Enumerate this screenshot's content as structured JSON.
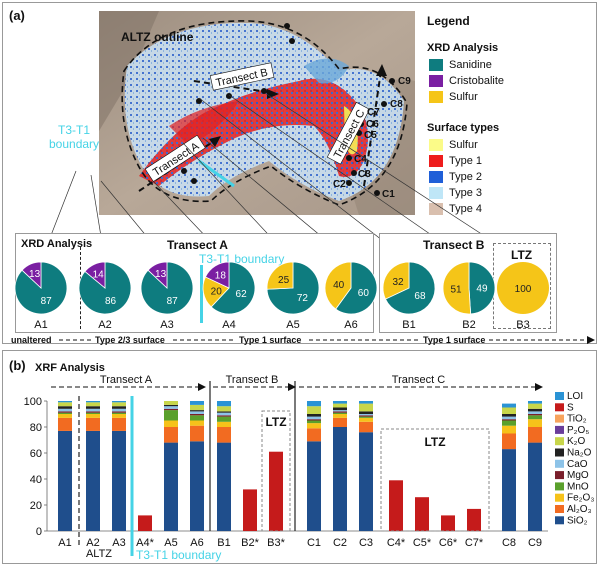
{
  "panel_a": {
    "label": "(a)",
    "legend_title": "Legend",
    "xrd_title": "XRD Analysis",
    "xrd_items": [
      {
        "name": "Sanidine",
        "color": "#0e7c7f"
      },
      {
        "name": "Cristobalite",
        "color": "#7a1fa2"
      },
      {
        "name": "Sulfur",
        "color": "#f5c518"
      }
    ],
    "surface_title": "Surface types",
    "surface_items": [
      {
        "name": "Sulfur",
        "color": "#fbfb88"
      },
      {
        "name": "Type 1",
        "color": "#ee1c1c"
      },
      {
        "name": "Type 2",
        "color": "#1f5fd8"
      },
      {
        "name": "Type 3",
        "color": "#bfe6f7"
      },
      {
        "name": "Type 4",
        "color": "#d9bfae"
      }
    ],
    "map": {
      "altz_label": "ALTZ outline",
      "boundary_label": "T3-T1\nboundary",
      "transect_labels": [
        "Transect A",
        "Transect B",
        "Transect C"
      ],
      "sample_labels": [
        "C9",
        "C8",
        "C7",
        "C6",
        "C5",
        "C4",
        "C3",
        "C2",
        "C1"
      ]
    },
    "pie_box_a": {
      "xrd_label": "XRD Analysis",
      "title": "Transect A",
      "boundary_label": "T3-T1 boundary",
      "bottom_labels": [
        "unaltered",
        "Type 2/3 surface",
        "Type 1 surface"
      ]
    },
    "pie_box_b": {
      "title": "Transect B",
      "ltz_label": "LTZ",
      "bottom_label": "Type 1 surface"
    }
  },
  "panel_b": {
    "label": "(b)",
    "title": "XRF Analysis",
    "transect_labels": [
      "Transect A",
      "Transect B",
      "Transect C"
    ],
    "ltz_label_b": "LTZ",
    "ltz_label_c": "LTZ",
    "altz_label": "ALTZ",
    "boundary_label": "T3-T1 boundary"
  },
  "chart_data": [
    {
      "type": "pie",
      "title": "XRD Analysis",
      "series_colors": {
        "Sanidine": "#0e7c7f",
        "Cristobalite": "#7a1fa2",
        "Sulfur": "#f5c518"
      },
      "pies": [
        {
          "label": "A1",
          "slices": [
            {
              "name": "Sanidine",
              "value": 87
            },
            {
              "name": "Cristobalite",
              "value": 13
            }
          ]
        },
        {
          "label": "A2",
          "slices": [
            {
              "name": "Sanidine",
              "value": 86
            },
            {
              "name": "Cristobalite",
              "value": 14
            }
          ]
        },
        {
          "label": "A3",
          "slices": [
            {
              "name": "Sanidine",
              "value": 87
            },
            {
              "name": "Cristobalite",
              "value": 13
            }
          ]
        },
        {
          "label": "A4",
          "slices": [
            {
              "name": "Sanidine",
              "value": 62
            },
            {
              "name": "Sulfur",
              "value": 20
            },
            {
              "name": "Cristobalite",
              "value": 18
            }
          ]
        },
        {
          "label": "A5",
          "slices": [
            {
              "name": "Sanidine",
              "value": 72
            },
            {
              "name": "Sulfur",
              "value": 25
            }
          ]
        },
        {
          "label": "A6",
          "slices": [
            {
              "name": "Sanidine",
              "value": 60
            },
            {
              "name": "Sulfur",
              "value": 40
            }
          ]
        },
        {
          "label": "B1",
          "slices": [
            {
              "name": "Sanidine",
              "value": 68
            },
            {
              "name": "Sulfur",
              "value": 32
            }
          ]
        },
        {
          "label": "B2",
          "slices": [
            {
              "name": "Sanidine",
              "value": 49
            },
            {
              "name": "Sulfur",
              "value": 51
            }
          ]
        },
        {
          "label": "B3",
          "slices": [
            {
              "name": "Sulfur",
              "value": 100
            }
          ]
        }
      ]
    },
    {
      "type": "bar",
      "stacked": true,
      "title": "XRF Analysis",
      "ylim": [
        0,
        100
      ],
      "yticks": [
        0,
        20,
        40,
        60,
        80,
        100
      ],
      "categories": [
        "A1",
        "A2",
        "A3",
        "A4*",
        "A5",
        "A6",
        "B1",
        "B2*",
        "B3*",
        "C1",
        "C2",
        "C3",
        "C4*",
        "C5*",
        "C6*",
        "C7*",
        "C8",
        "C9"
      ],
      "series": [
        {
          "name": "SiO2",
          "color": "#1f4e8c",
          "values": [
            77,
            77,
            77,
            0,
            68,
            69,
            68,
            0,
            0,
            69,
            80,
            76,
            0,
            0,
            0,
            0,
            63,
            68
          ]
        },
        {
          "name": "Al2O3",
          "color": "#f26b21",
          "values": [
            10,
            10,
            10,
            0,
            12,
            12,
            12,
            0,
            0,
            10,
            7,
            8,
            0,
            0,
            0,
            0,
            12,
            12
          ]
        },
        {
          "name": "Fe2O3",
          "color": "#f6c21a",
          "values": [
            3,
            3,
            3,
            0,
            5,
            4,
            4,
            0,
            0,
            4,
            3,
            3,
            0,
            0,
            0,
            0,
            6,
            6
          ]
        },
        {
          "name": "MnO",
          "color": "#5aa02c",
          "values": [
            1,
            1,
            1,
            0,
            8,
            4,
            4,
            0,
            0,
            2,
            1,
            1,
            0,
            0,
            0,
            0,
            4,
            3
          ]
        },
        {
          "name": "MgO",
          "color": "#7a1f2b",
          "values": [
            1,
            1,
            1,
            0,
            1,
            1,
            1,
            0,
            0,
            1,
            1,
            1,
            0,
            0,
            0,
            0,
            1,
            1
          ]
        },
        {
          "name": "CaO",
          "color": "#8dc3e8",
          "values": [
            2,
            2,
            2,
            0,
            2,
            2,
            2,
            0,
            0,
            2,
            1,
            1,
            0,
            0,
            0,
            0,
            2,
            2
          ]
        },
        {
          "name": "Na2O",
          "color": "#222222",
          "values": [
            2,
            2,
            2,
            0,
            1,
            1,
            1,
            0,
            0,
            2,
            2,
            2,
            0,
            0,
            0,
            0,
            2,
            2
          ]
        },
        {
          "name": "K2O",
          "color": "#c8d64a",
          "values": [
            3,
            3,
            3,
            0,
            3,
            4,
            4,
            0,
            0,
            6,
            3,
            6,
            0,
            0,
            0,
            0,
            5,
            4
          ]
        },
        {
          "name": "P2O5",
          "color": "#6a3d9a",
          "values": [
            0,
            0,
            0,
            0,
            0,
            0,
            0,
            0,
            0,
            0,
            0,
            0,
            0,
            0,
            0,
            0,
            0,
            0
          ]
        },
        {
          "name": "TiO2",
          "color": "#f7a35c",
          "values": [
            0,
            0,
            0,
            0,
            0,
            0,
            0,
            0,
            0,
            0,
            0,
            0,
            0,
            0,
            0,
            0,
            0,
            0
          ]
        },
        {
          "name": "S",
          "color": "#c51b1b",
          "values": [
            0,
            0,
            0,
            12,
            0,
            0,
            0,
            32,
            61,
            0,
            0,
            0,
            39,
            26,
            12,
            17,
            0,
            0
          ]
        },
        {
          "name": "LOI",
          "color": "#2a93d5",
          "values": [
            1,
            1,
            1,
            0,
            0,
            3,
            4,
            0,
            0,
            4,
            2,
            2,
            0,
            0,
            0,
            0,
            3,
            2
          ]
        }
      ],
      "legend": [
        "LOI",
        "S",
        "TiO₂",
        "P₂O₅",
        "K₂O",
        "Na₂O",
        "CaO",
        "MgO",
        "MnO",
        "Fe₂O₃",
        "Al₂O₃",
        "SiO₂"
      ],
      "legend_colors": [
        "#2a93d5",
        "#c51b1b",
        "#f7a35c",
        "#6a3d9a",
        "#c8d64a",
        "#222222",
        "#8dc3e8",
        "#7a1f2b",
        "#5aa02c",
        "#f6c21a",
        "#f26b21",
        "#1f4e8c"
      ]
    }
  ]
}
